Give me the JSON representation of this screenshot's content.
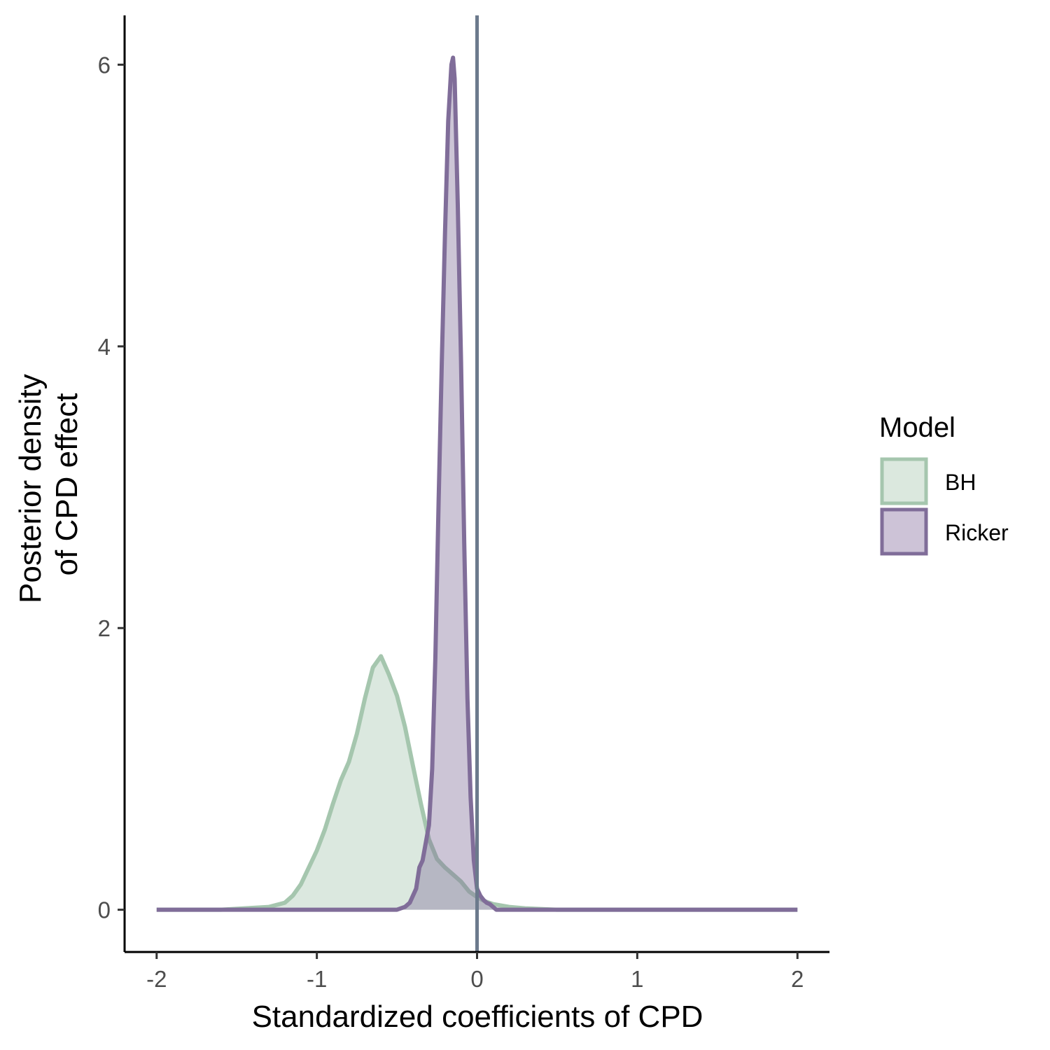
{
  "chart_data": {
    "type": "area",
    "title": "",
    "xlabel": "Standardized coefficients of CPD",
    "ylabel_lines": [
      "Posterior density",
      "of CPD effect"
    ],
    "xlim": [
      -2.2,
      2.2
    ],
    "ylim": [
      -0.3,
      6.35
    ],
    "x_ticks": [
      -2,
      -1,
      0,
      1,
      2
    ],
    "x_tick_labels": [
      "-2",
      "-1",
      "0",
      "1",
      "2"
    ],
    "y_ticks": [
      0,
      2,
      4,
      6
    ],
    "y_tick_labels": [
      "0",
      "2",
      "4",
      "6"
    ],
    "reference_line_x": 0,
    "reference_line_color": "#6c7a8c",
    "grid": false,
    "legend": {
      "title": "Model",
      "position": "right",
      "entries": [
        {
          "label": "BH",
          "stroke": "#a5c6ae",
          "fill": "#dbe8de"
        },
        {
          "label": "Ricker",
          "stroke": "#806d99",
          "fill": "#cdc3d7"
        }
      ]
    },
    "series": [
      {
        "name": "BH",
        "stroke": "#a5c6ae",
        "fill": "#a5c6ae",
        "fill_opacity": 0.4,
        "x": [
          -2.0,
          -1.6,
          -1.45,
          -1.3,
          -1.2,
          -1.15,
          -1.1,
          -1.0,
          -0.95,
          -0.9,
          -0.85,
          -0.8,
          -0.75,
          -0.7,
          -0.65,
          -0.6,
          -0.55,
          -0.5,
          -0.45,
          -0.4,
          -0.35,
          -0.3,
          -0.25,
          -0.2,
          -0.15,
          -0.1,
          -0.05,
          0.0,
          0.05,
          0.1,
          0.2,
          0.3,
          0.5,
          2.0
        ],
        "y": [
          0.0,
          0.0,
          0.01,
          0.02,
          0.05,
          0.1,
          0.18,
          0.42,
          0.57,
          0.75,
          0.92,
          1.05,
          1.25,
          1.5,
          1.72,
          1.8,
          1.67,
          1.52,
          1.3,
          1.02,
          0.75,
          0.5,
          0.36,
          0.3,
          0.25,
          0.2,
          0.13,
          0.09,
          0.06,
          0.04,
          0.02,
          0.01,
          0.0,
          0.0
        ]
      },
      {
        "name": "Ricker",
        "stroke": "#806d99",
        "fill": "#806d99",
        "fill_opacity": 0.4,
        "x": [
          -2.0,
          -0.6,
          -0.5,
          -0.45,
          -0.42,
          -0.38,
          -0.36,
          -0.34,
          -0.3,
          -0.28,
          -0.26,
          -0.24,
          -0.22,
          -0.2,
          -0.18,
          -0.16,
          -0.15,
          -0.14,
          -0.12,
          -0.1,
          -0.08,
          -0.06,
          -0.04,
          -0.02,
          0.0,
          0.02,
          0.04,
          0.06,
          0.08,
          0.1,
          0.12,
          2.0
        ],
        "y": [
          0.0,
          0.0,
          0.0,
          0.02,
          0.05,
          0.15,
          0.3,
          0.35,
          0.6,
          1.0,
          1.8,
          2.9,
          3.9,
          4.8,
          5.6,
          6.0,
          6.05,
          5.9,
          5.0,
          3.9,
          2.6,
          1.5,
          0.8,
          0.35,
          0.15,
          0.1,
          0.07,
          0.05,
          0.04,
          0.02,
          0.0,
          0.0
        ]
      }
    ]
  }
}
